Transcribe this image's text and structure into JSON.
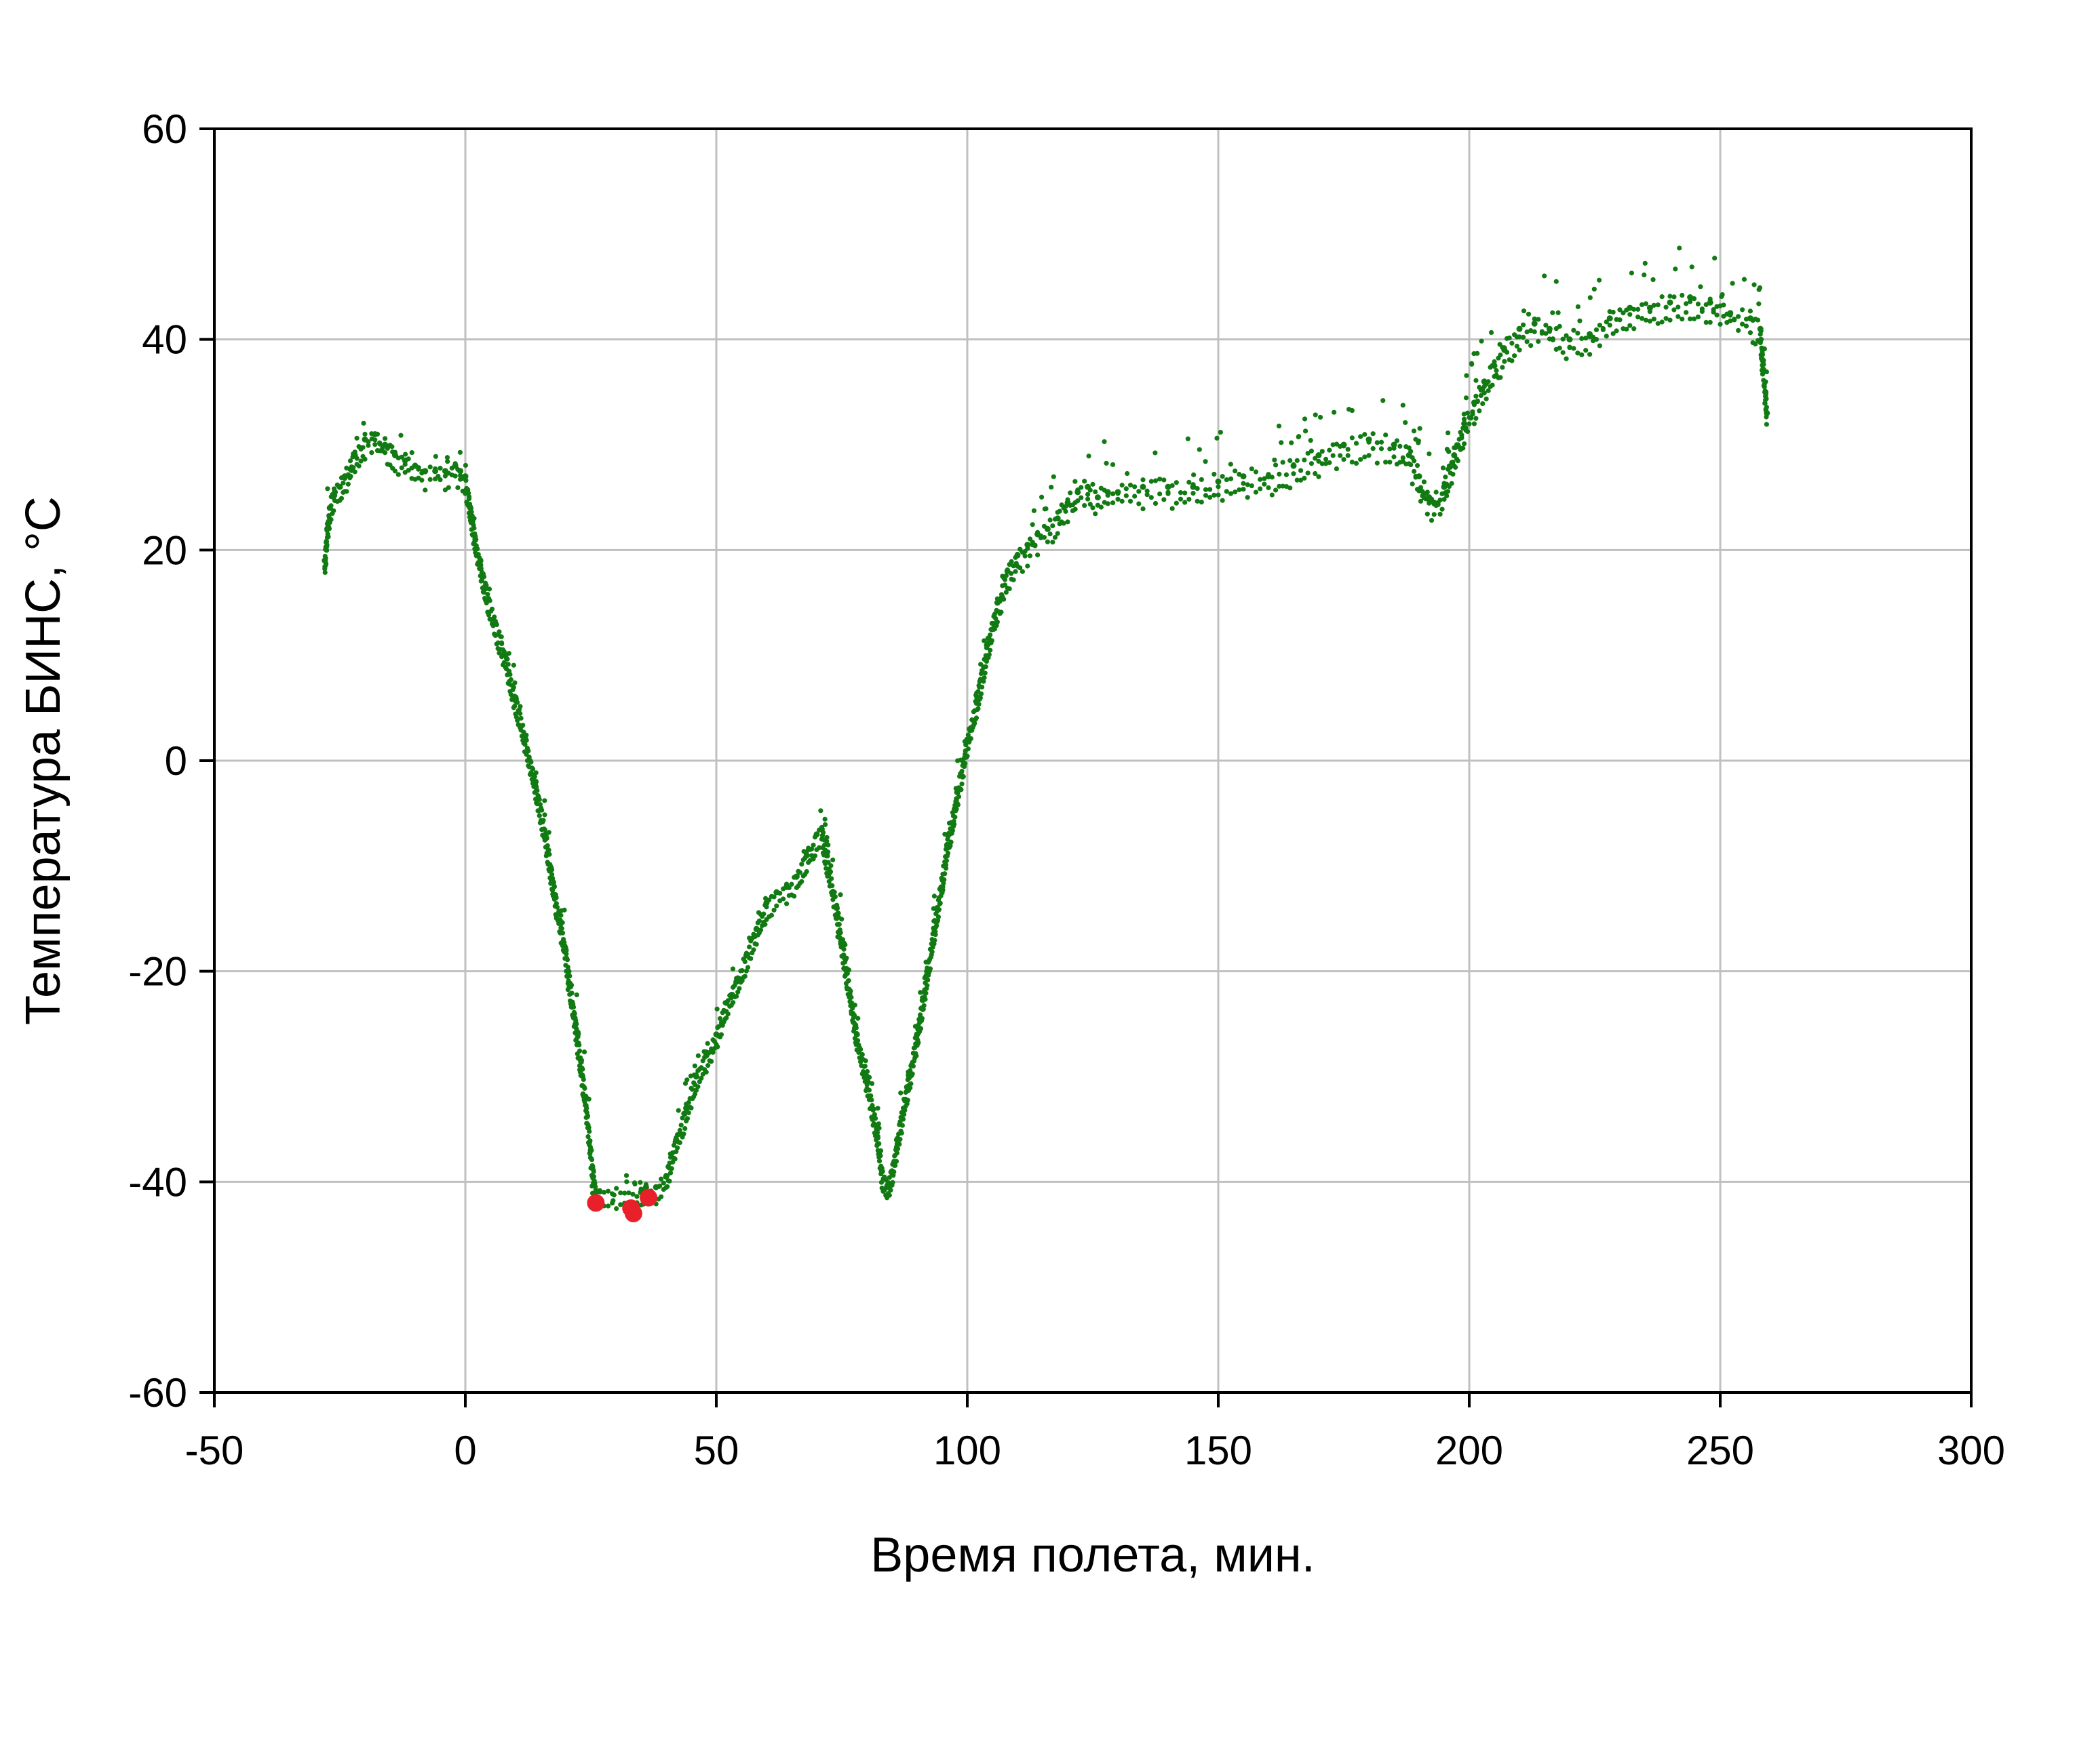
{
  "chart_data": {
    "type": "scatter",
    "title": "",
    "xlabel": "Время полета, мин.",
    "ylabel": "Температура БИНС, °С",
    "xlim": [
      -50,
      300
    ],
    "ylim": [
      -60,
      60
    ],
    "xticks": [
      -50,
      0,
      50,
      100,
      150,
      200,
      250,
      300
    ],
    "yticks": [
      60,
      40,
      20,
      0,
      -20,
      -40,
      -60
    ],
    "grid": true,
    "legend": "none",
    "colors": {
      "main": "#127a12",
      "highlight": "#e8202a",
      "grid": "#c0c0c0",
      "axis": "#000000"
    },
    "series": [
      {
        "color": "#127a12",
        "points": [
          [
            -28,
            19
          ],
          [
            -27.5,
            22
          ],
          [
            -27,
            24
          ],
          [
            -26,
            25.5
          ],
          [
            -25,
            26
          ],
          [
            -24,
            27
          ],
          [
            -22,
            29
          ],
          [
            -20,
            30.5
          ],
          [
            -18,
            31
          ],
          [
            -16,
            30
          ],
          [
            -14,
            29
          ],
          [
            -12,
            28.5
          ],
          [
            -10,
            28
          ],
          [
            -8,
            27.5
          ],
          [
            -6,
            27.5
          ],
          [
            -4,
            27.5
          ],
          [
            -2,
            28
          ],
          [
            -1,
            27.5
          ],
          [
            0,
            27
          ],
          [
            1,
            24
          ],
          [
            2,
            21
          ],
          [
            3,
            19
          ],
          [
            4,
            16.5
          ],
          [
            6,
            13
          ],
          [
            8,
            10
          ],
          [
            10,
            6
          ],
          [
            12,
            2
          ],
          [
            14,
            -2
          ],
          [
            16,
            -7
          ],
          [
            18,
            -13
          ],
          [
            20,
            -18
          ],
          [
            22,
            -25
          ],
          [
            24,
            -32
          ],
          [
            25,
            -37
          ],
          [
            26,
            -41
          ],
          [
            35,
            -41
          ],
          [
            36,
            -40.5
          ],
          [
            38,
            -40.5
          ],
          [
            40,
            -39.5
          ],
          [
            42,
            -36
          ],
          [
            44,
            -33
          ],
          [
            46,
            -30
          ],
          [
            48,
            -28
          ],
          [
            50,
            -26
          ],
          [
            52,
            -23
          ],
          [
            54,
            -21
          ],
          [
            56,
            -18.5
          ],
          [
            58,
            -16
          ],
          [
            60,
            -13.5
          ],
          [
            62,
            -12.5
          ],
          [
            64,
            -12
          ],
          [
            66,
            -11
          ],
          [
            68,
            -9
          ],
          [
            70,
            -7
          ],
          [
            71,
            -6.5
          ],
          [
            72,
            -9
          ],
          [
            74,
            -14
          ],
          [
            76,
            -20
          ],
          [
            78,
            -26
          ],
          [
            80,
            -30
          ],
          [
            82,
            -35
          ],
          [
            83,
            -39
          ],
          [
            84,
            -40.5
          ],
          [
            85,
            -39
          ],
          [
            86,
            -36
          ],
          [
            88,
            -31
          ],
          [
            90,
            -26
          ],
          [
            92,
            -20
          ],
          [
            94,
            -14
          ],
          [
            96,
            -8
          ],
          [
            98,
            -3
          ],
          [
            100,
            2
          ],
          [
            102,
            6
          ],
          [
            104,
            11
          ],
          [
            106,
            15
          ],
          [
            108,
            18
          ],
          [
            110,
            19.5
          ],
          [
            112,
            20.5
          ],
          [
            114,
            21.5
          ],
          [
            116,
            22
          ],
          [
            118,
            23
          ],
          [
            120,
            24.5
          ],
          [
            122,
            25.5
          ],
          [
            124,
            26
          ],
          [
            126,
            25
          ],
          [
            128,
            25.5
          ],
          [
            130,
            25.5
          ],
          [
            135,
            26
          ],
          [
            140,
            26
          ],
          [
            145,
            26
          ],
          [
            150,
            26.5
          ],
          [
            155,
            27
          ],
          [
            160,
            27
          ],
          [
            165,
            28
          ],
          [
            170,
            29
          ],
          [
            175,
            30
          ],
          [
            180,
            30.5
          ],
          [
            185,
            30
          ],
          [
            188,
            29
          ],
          [
            190,
            27
          ],
          [
            192,
            25
          ],
          [
            193,
            24.5
          ],
          [
            195,
            26
          ],
          [
            197,
            29
          ],
          [
            199,
            32
          ],
          [
            201,
            34
          ],
          [
            203,
            36
          ],
          [
            205,
            37.5
          ],
          [
            207,
            39
          ],
          [
            210,
            41
          ],
          [
            213,
            41.5
          ],
          [
            216,
            41
          ],
          [
            220,
            40
          ],
          [
            224,
            40.5
          ],
          [
            228,
            42
          ],
          [
            232,
            43
          ],
          [
            236,
            43
          ],
          [
            240,
            43.5
          ],
          [
            244,
            44
          ],
          [
            248,
            43.5
          ],
          [
            252,
            42.5
          ],
          [
            256,
            42
          ],
          [
            258,
            41
          ],
          [
            258.5,
            38
          ],
          [
            259,
            35
          ],
          [
            259.3,
            33
          ]
        ]
      },
      {
        "color": "#e8202a",
        "points": [
          [
            26,
            -42
          ],
          [
            33,
            -42.5
          ],
          [
            33.5,
            -43
          ],
          [
            36.5,
            -41.5
          ]
        ]
      }
    ]
  }
}
